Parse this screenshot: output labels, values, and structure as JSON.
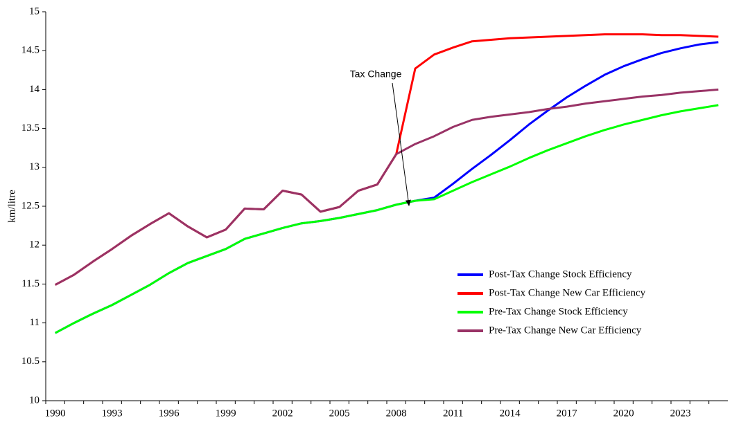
{
  "chart_data": {
    "type": "line",
    "y_label": "km/litre",
    "annotation": "Tax Change",
    "categories": [
      "1990",
      null,
      null,
      "1993",
      null,
      null,
      "1996",
      null,
      null,
      "1999",
      null,
      null,
      "2002",
      null,
      null,
      "2005",
      null,
      null,
      "2008",
      null,
      null,
      "2011",
      null,
      null,
      "2014",
      null,
      null,
      "2017",
      null,
      null,
      "2020",
      null,
      null,
      "2023",
      null,
      null
    ],
    "ylim": [
      10,
      15
    ],
    "yticks": [
      10,
      10.5,
      11,
      11.5,
      12,
      12.5,
      13,
      13.5,
      14,
      14.5,
      15
    ],
    "series": [
      {
        "name": "Post-Tax Change Stock Efficiency",
        "color": "#0000ff",
        "values": [
          10.87,
          11.0,
          11.12,
          11.23,
          11.36,
          11.49,
          11.64,
          11.77,
          11.86,
          11.95,
          12.08,
          12.15,
          12.22,
          12.28,
          12.31,
          12.35,
          12.4,
          12.45,
          12.52,
          12.57,
          12.61,
          12.79,
          12.98,
          13.16,
          13.35,
          13.55,
          13.73,
          13.9,
          14.05,
          14.19,
          14.3,
          14.39,
          14.47,
          14.53,
          14.58,
          14.61
        ]
      },
      {
        "name": "Post-Tax Change New Car Efficiency",
        "color": "#ff0000",
        "values": [
          11.49,
          11.62,
          11.79,
          11.95,
          12.12,
          12.27,
          12.41,
          12.24,
          12.1,
          12.2,
          12.47,
          12.46,
          12.7,
          12.65,
          12.43,
          12.49,
          12.7,
          12.78,
          13.17,
          14.27,
          14.45,
          14.54,
          14.62,
          14.64,
          14.66,
          14.67,
          14.68,
          14.69,
          14.7,
          14.71,
          14.71,
          14.71,
          14.7,
          14.7,
          14.69,
          14.68
        ]
      },
      {
        "name": "Pre-Tax Change Stock Efficiency",
        "color": "#00ff00",
        "values": [
          10.87,
          11.0,
          11.12,
          11.23,
          11.36,
          11.49,
          11.64,
          11.77,
          11.86,
          11.95,
          12.08,
          12.15,
          12.22,
          12.28,
          12.31,
          12.35,
          12.4,
          12.45,
          12.52,
          12.57,
          12.59,
          12.7,
          12.81,
          12.91,
          13.01,
          13.12,
          13.22,
          13.31,
          13.4,
          13.48,
          13.55,
          13.61,
          13.67,
          13.72,
          13.76,
          13.8
        ]
      },
      {
        "name": "Pre-Tax Change New Car Efficiency",
        "color": "#993366",
        "values": [
          11.49,
          11.62,
          11.79,
          11.95,
          12.12,
          12.27,
          12.41,
          12.24,
          12.1,
          12.2,
          12.47,
          12.46,
          12.7,
          12.65,
          12.43,
          12.49,
          12.7,
          12.78,
          13.17,
          13.3,
          13.4,
          13.52,
          13.61,
          13.65,
          13.68,
          13.71,
          13.75,
          13.78,
          13.82,
          13.85,
          13.88,
          13.91,
          13.93,
          13.96,
          13.98,
          14.0
        ]
      }
    ]
  }
}
